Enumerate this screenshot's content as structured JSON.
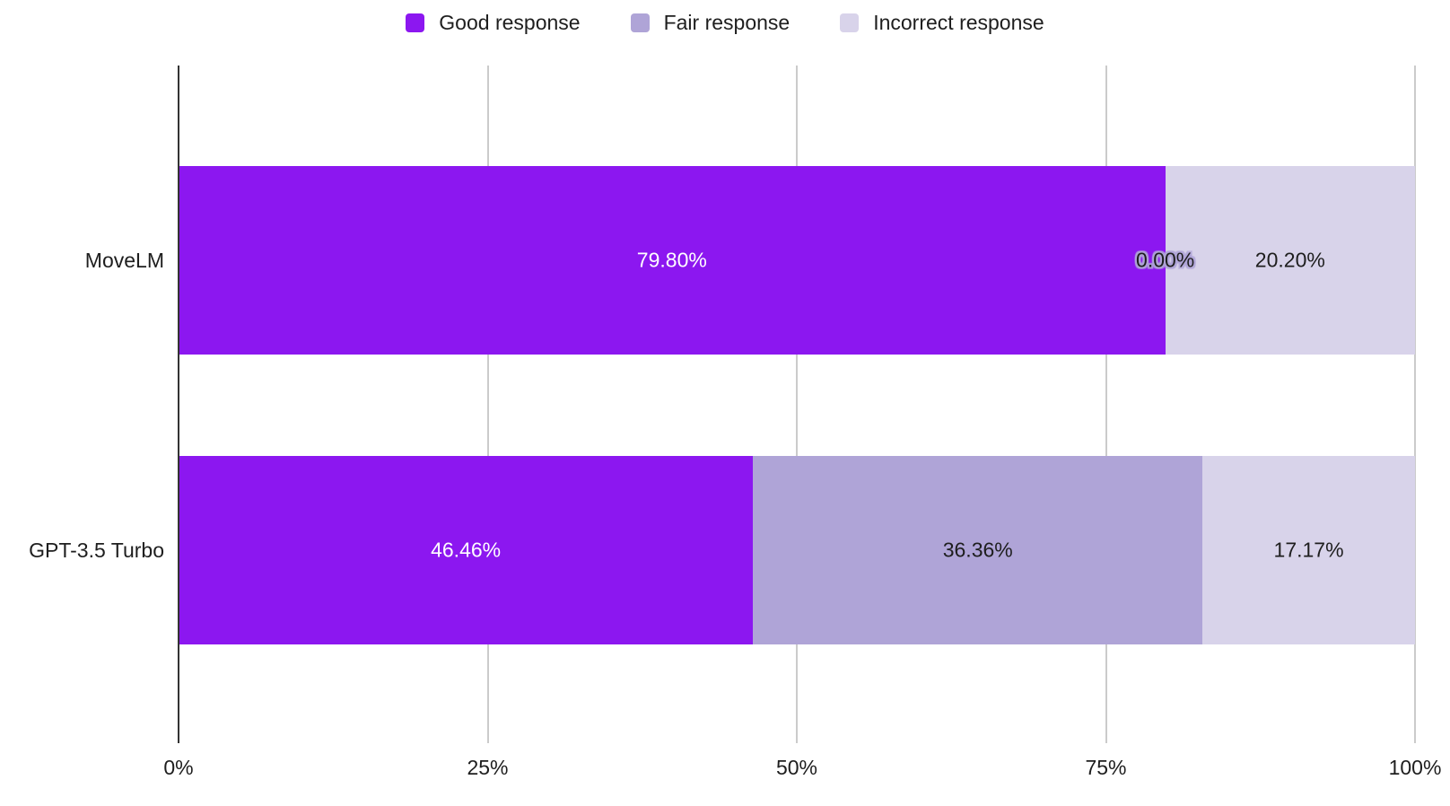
{
  "chart_data": {
    "type": "bar",
    "orientation": "horizontal",
    "stacked": true,
    "title": "",
    "categories": [
      "MoveLM",
      "GPT-3.5 Turbo"
    ],
    "series": [
      {
        "name": "Good response",
        "color": "#8c17f0",
        "values": [
          79.8,
          46.46
        ]
      },
      {
        "name": "Fair response",
        "color": "#afa4d7",
        "values": [
          0.0,
          36.36
        ]
      },
      {
        "name": "Incorrect response",
        "color": "#d8d3ea",
        "values": [
          20.2,
          17.17
        ]
      }
    ],
    "labels": [
      [
        {
          "text": "79.80%",
          "color": "#ffffff"
        },
        {
          "text": "0.00%",
          "color": "#1e1e1e",
          "halo": "#afa4d7"
        },
        {
          "text": "20.20%",
          "color": "#1e1e1e"
        }
      ],
      [
        {
          "text": "46.46%",
          "color": "#ffffff"
        },
        {
          "text": "36.36%",
          "color": "#1e1e1e"
        },
        {
          "text": "17.17%",
          "color": "#1e1e1e"
        }
      ]
    ],
    "x_ticks": [
      "0%",
      "25%",
      "50%",
      "75%",
      "100%"
    ],
    "x_tick_values": [
      0,
      25,
      50,
      75,
      100
    ],
    "xlim": [
      0,
      100
    ],
    "grid": true,
    "legend_position": "top",
    "axis_color": "#333333",
    "gridline_color": "#cbcbcb",
    "text_color": "#1e1e1e"
  }
}
